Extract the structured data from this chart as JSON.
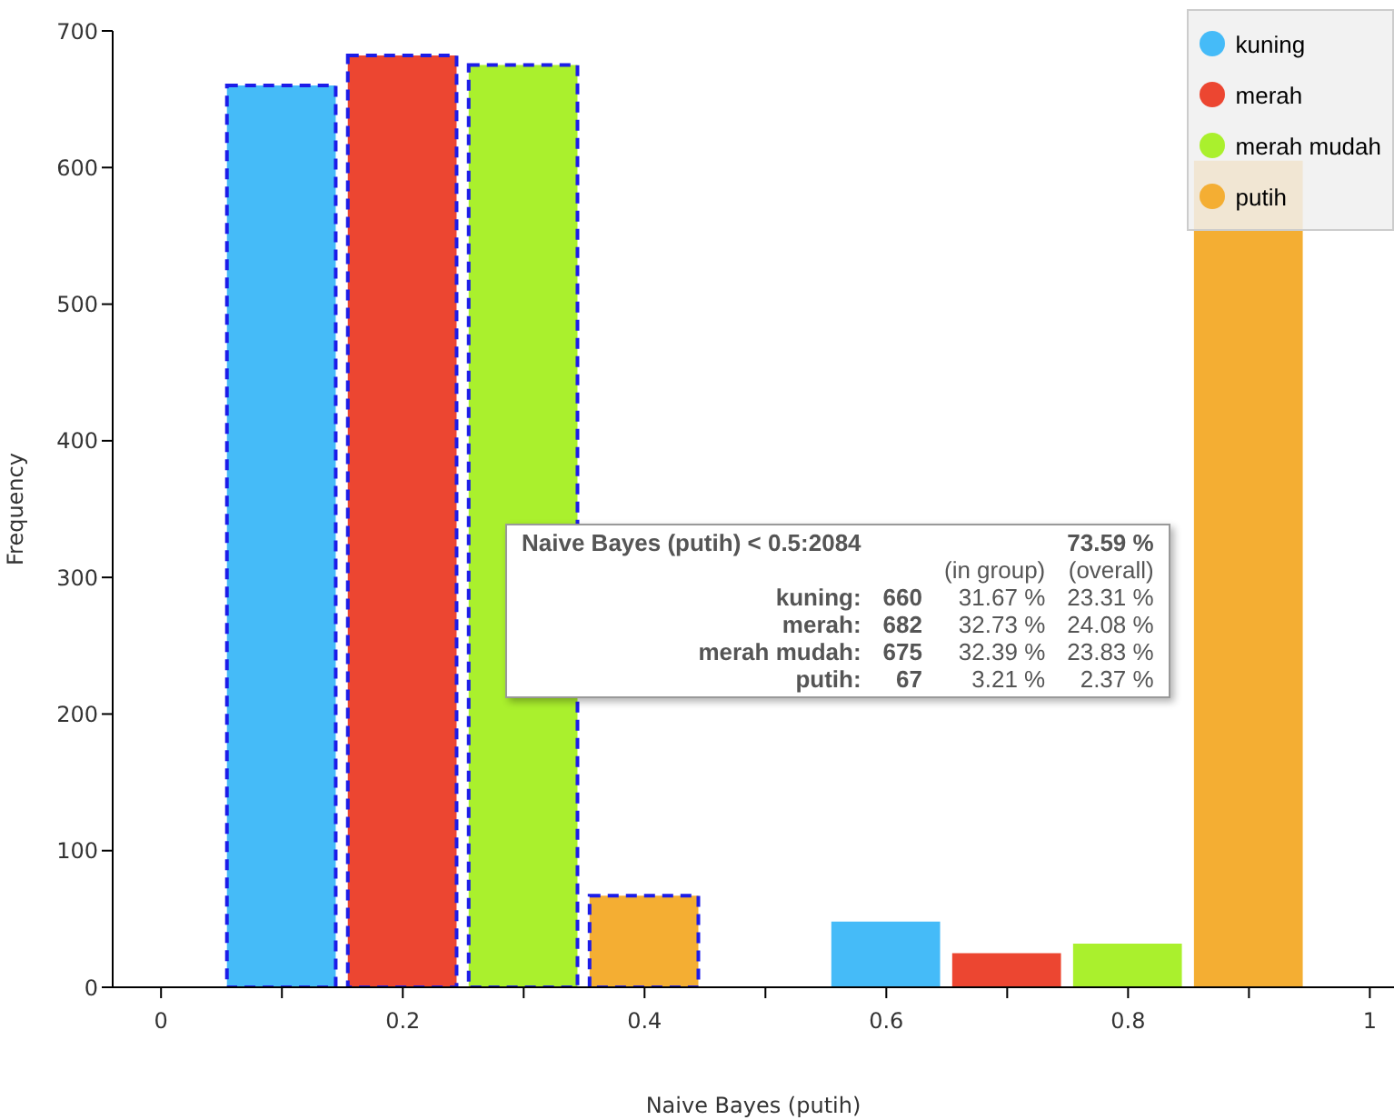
{
  "chart_data": {
    "type": "bar",
    "xlabel": "Naive Bayes (putih)",
    "ylabel": "Frequency",
    "xlim": [
      -0.04,
      1.02
    ],
    "xticks": [
      0,
      {
        "value": 0.1,
        "label": null
      },
      0.2,
      {
        "value": 0.3,
        "label": null
      },
      0.4,
      {
        "value": 0.5,
        "label": null
      },
      0.6,
      {
        "value": 0.7,
        "label": null
      },
      0.8,
      {
        "value": 0.9,
        "label": null
      },
      1
    ],
    "ylim": [
      0,
      700
    ],
    "yticks": [
      0,
      100,
      200,
      300,
      400,
      500,
      600,
      700
    ],
    "legend": "top right",
    "series": [
      {
        "name": "kuning",
        "color": "#45bbf8",
        "x": [
          0.1,
          0.6
        ],
        "values": [
          660,
          48
        ]
      },
      {
        "name": "merah",
        "color": "#ec4631",
        "x": [
          0.2,
          0.7
        ],
        "values": [
          682,
          25
        ]
      },
      {
        "name": "merah mudah",
        "color": "#aaf02d",
        "x": [
          0.3,
          0.8
        ],
        "values": [
          675,
          32
        ]
      },
      {
        "name": "putih",
        "color": "#f4ae33",
        "x": [
          0.4,
          0.9
        ],
        "values": [
          67,
          605
        ]
      }
    ],
    "annotations": [
      "Naive Bayes (putih) < 0.5:2084",
      "73.59 %",
      "(in group)",
      "(overall)",
      "kuning:",
      "660",
      "31.67 %",
      "23.31 %",
      "merah:",
      "682",
      "32.73 %",
      "24.08 %",
      "merah mudah:",
      "675",
      "32.39 %",
      "23.83 %",
      "putih:",
      "67",
      "3.21 %",
      "2.37 %"
    ]
  }
}
